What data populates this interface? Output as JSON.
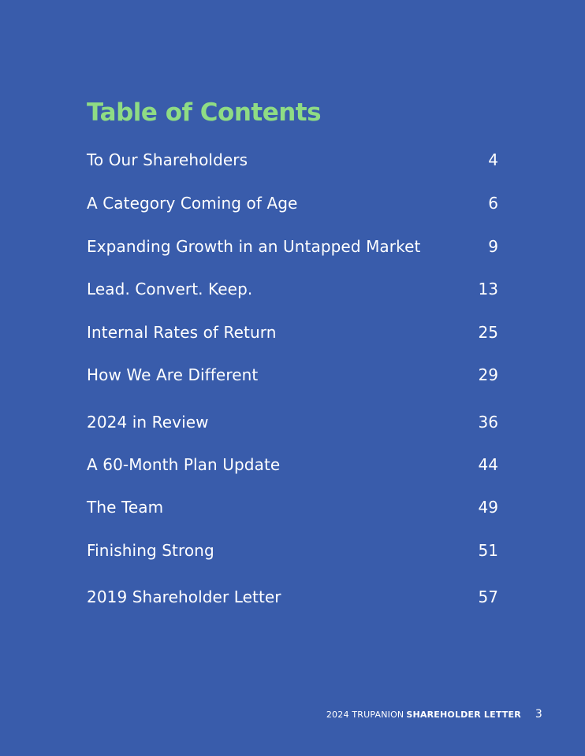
{
  "title": "Table of Contents",
  "entries": [
    {
      "label": "To Our Shareholders",
      "page": "4"
    },
    {
      "label": "A Category Coming of Age",
      "page": "6"
    },
    {
      "label": "Expanding Growth in an Untapped Market",
      "page": "9"
    },
    {
      "label": "Lead. Convert. Keep.",
      "page": "13"
    },
    {
      "label": "Internal Rates of Return",
      "page": "25"
    },
    {
      "label": "How We Are Different",
      "page": "29"
    },
    {
      "label": "2024 in Review",
      "page": "36"
    },
    {
      "label": "A 60-Month Plan Update",
      "page": "44"
    },
    {
      "label": "The Team",
      "page": "49"
    },
    {
      "label": "Finishing Strong",
      "page": "51"
    },
    {
      "label": "2019 Shareholder Letter",
      "page": "57"
    }
  ],
  "footer": {
    "prefix": "2024 TRUPANION",
    "emphasis": "SHAREHOLDER LETTER",
    "page_number": "3"
  },
  "colors": {
    "background": "#395cab",
    "title": "#8fdc84",
    "text": "#ffffff"
  }
}
